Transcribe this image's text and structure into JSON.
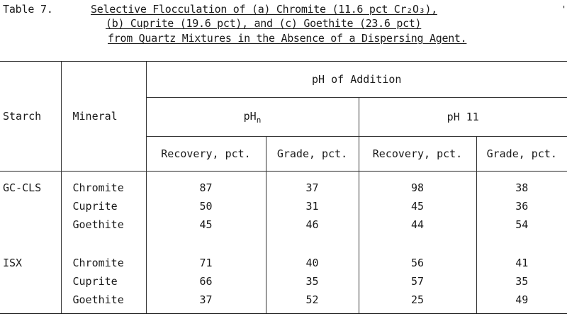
{
  "caption": {
    "label": "Table 7.",
    "line1": "Selective Flocculation of (a) Chromite (11.6 pct Cr₂O₃),",
    "line2": "(b) Cuprite (19.6 pct), and (c) Goethite (23.6 pct)",
    "line3": "from Quartz Mixtures in the Absence of a Dispersing Agent.",
    "mark": "'"
  },
  "headers": {
    "starch": "Starch",
    "mineral": "Mineral",
    "ph_addition": "pH of Addition",
    "ph_n_main": "pH",
    "ph_n_sub": "n",
    "ph_11": "pH 11",
    "recovery": "Recovery, pct.",
    "grade": "Grade, pct."
  },
  "groups": [
    {
      "starch": "GC-CLS",
      "rows": [
        {
          "mineral": "Chromite",
          "rec_n": "87",
          "grade_n": "37",
          "rec_11": "98",
          "grade_11": "38"
        },
        {
          "mineral": "Cuprite",
          "rec_n": "50",
          "grade_n": "31",
          "rec_11": "45",
          "grade_11": "36"
        },
        {
          "mineral": "Goethite",
          "rec_n": "45",
          "grade_n": "46",
          "rec_11": "44",
          "grade_11": "54"
        }
      ]
    },
    {
      "starch": "ISX",
      "rows": [
        {
          "mineral": "Chromite",
          "rec_n": "71",
          "grade_n": "40",
          "rec_11": "56",
          "grade_11": "41"
        },
        {
          "mineral": "Cuprite",
          "rec_n": "66",
          "grade_n": "35",
          "rec_11": "57",
          "grade_11": "35"
        },
        {
          "mineral": "Goethite",
          "rec_n": "37",
          "grade_n": "52",
          "rec_11": "25",
          "grade_11": "49"
        }
      ]
    }
  ]
}
